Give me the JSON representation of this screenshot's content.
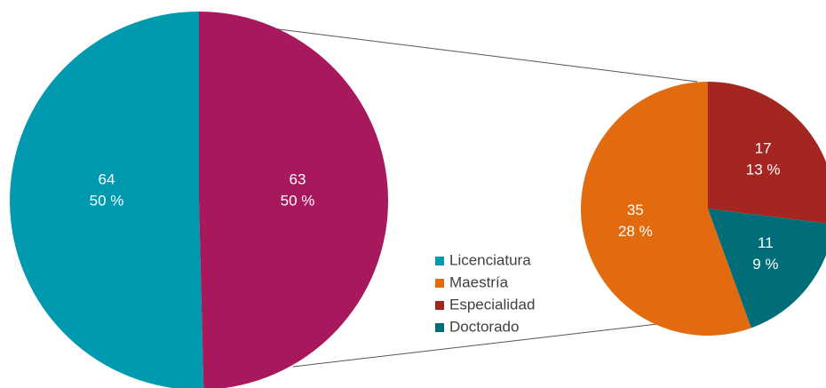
{
  "chart_data": {
    "type": "pie",
    "slices": [
      {
        "name": "Licenciatura",
        "color": "#0099b0",
        "value": 64,
        "percent_label": "50 %"
      },
      {
        "name": null,
        "color": "#a8185c",
        "value": 63,
        "percent_label": "50 %"
      }
    ],
    "sub_pie": {
      "slices": [
        {
          "name": "Maestría",
          "color": "#e26b10",
          "value": 35,
          "percent_label": "28 %"
        },
        {
          "name": "Especialidad",
          "color": "#a32621",
          "value": 17,
          "percent_label": "13 %"
        },
        {
          "name": "Doctorado",
          "color": "#006d78",
          "value": 11,
          "percent_label": "9 %"
        }
      ]
    }
  }
}
